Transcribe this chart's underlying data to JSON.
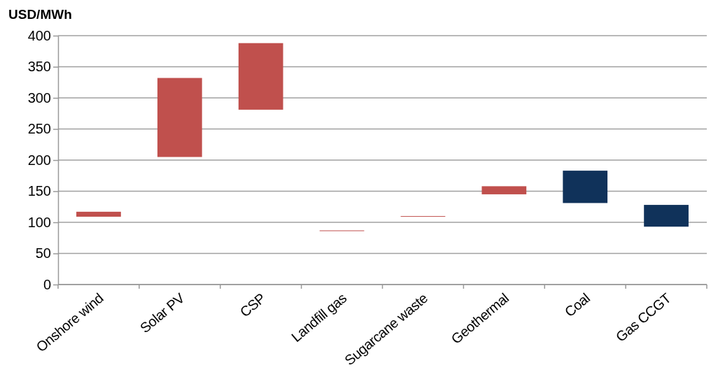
{
  "chart_data": {
    "type": "bar",
    "ylabel": "USD/MWh",
    "categories": [
      "Onshore wind",
      "Solar PV",
      "CSP",
      "Landfill gas",
      "Sugarcane waste",
      "Geothermal",
      "Coal",
      "Gas CCGT"
    ],
    "base": [
      109,
      205,
      281,
      86,
      109,
      145,
      131,
      93
    ],
    "values": [
      8,
      127,
      107,
      1,
      1,
      13,
      52,
      35
    ],
    "colors": [
      "#c0504d",
      "#c0504d",
      "#c0504d",
      "#c0504d",
      "#c0504d",
      "#c0504d",
      "#10325a",
      "#10325a"
    ],
    "ylim": [
      0,
      400
    ],
    "yticks": [
      0,
      50,
      100,
      150,
      200,
      250,
      300,
      350,
      400
    ],
    "grid": "y"
  }
}
